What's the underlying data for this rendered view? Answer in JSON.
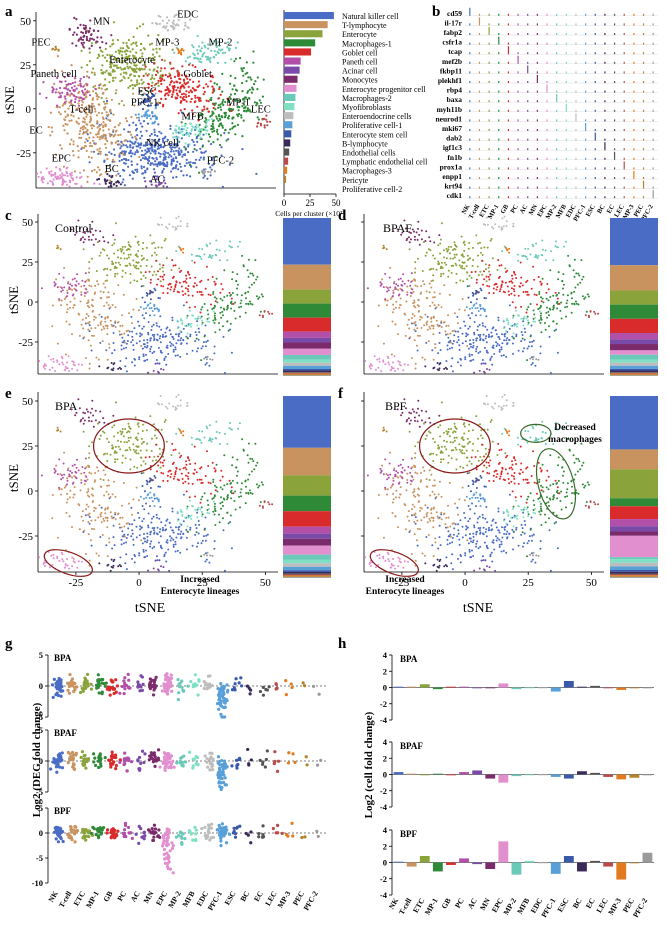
{
  "colors": {
    "NK": "#4a6cc4",
    "Tcell": "#c9935f",
    "ETC": "#8aa33a",
    "MP1": "#2f8a38",
    "GB": "#d92b2b",
    "PC": "#b24fa8",
    "AC": "#7a4aa8",
    "MN": "#7b2b6b",
    "EPC": "#e28fd0",
    "MP2": "#6ac9b8",
    "MFB": "#7fe0c4",
    "EDC": "#bdbdbd",
    "PFC1": "#5aa0d8",
    "ESC": "#3a59a8",
    "BC": "#3a2a5a",
    "EC": "#555555",
    "LEC": "#b84a4a",
    "MP3": "#e27a1e",
    "PEC": "#b3822a",
    "PFC2": "#9a9a9a"
  },
  "panels": {
    "a": {
      "letter": "a",
      "xlabel": "",
      "ylabel": "tSNE",
      "clusters": [
        "MN",
        "EDC",
        "PEC",
        "MP-3",
        "MP-2",
        "Enterocyte",
        "Goblet",
        "Paneth cell",
        "ESC",
        "PFC-1",
        "MP-1",
        "T-cell",
        "MFB",
        "LEC",
        "EC",
        "NK cell",
        "PFC-2",
        "EPC",
        "BC",
        "AC"
      ]
    },
    "b": {
      "letter": "b",
      "genes": [
        "cd59",
        "il-17r",
        "fabp2",
        "csfr1a",
        "tcap",
        "mef2b",
        "fkbp11",
        "plekhf1",
        "rbp4",
        "baxa",
        "myh11b",
        "neurod1",
        "mki67",
        "dab2",
        "igf1c3",
        "fn1b",
        "prox1a",
        "enpp1",
        "krt94",
        "cdk1"
      ],
      "cell_types": [
        "NK",
        "T-cell",
        "ETC",
        "MP-1",
        "GB",
        "PC",
        "AC",
        "MN",
        "EPC",
        "MP-2",
        "MFB",
        "EDC",
        "PFC-1",
        "ESC",
        "BC",
        "EC",
        "LEC",
        "MP-3",
        "PEC",
        "PFC-2"
      ]
    },
    "c": {
      "letter": "c",
      "label": "Control",
      "ylabel": "tSNE"
    },
    "d": {
      "letter": "d",
      "label": "BPAF"
    },
    "e": {
      "letter": "e",
      "label": "BPA",
      "ylabel": "tSNE",
      "xlabel": "tSNE",
      "annotation": "Increased Enterocyte lineages",
      "annotation_lines": [
        "Increased",
        "Enterocyte lineages"
      ]
    },
    "f": {
      "letter": "f",
      "label": "BPF",
      "xlabel": "tSNE",
      "annotation_top": [
        "Decreased",
        "macrophages"
      ],
      "annotation_bottom": [
        "Increased",
        "Enterocyte lineages"
      ]
    },
    "g": {
      "letter": "g",
      "ylabel": "Log2 (DEG fold change)",
      "rows": [
        "BPA",
        "BPAF",
        "BPF"
      ]
    },
    "h": {
      "letter": "h",
      "ylabel": "Log2 (cell fold change)",
      "rows": [
        "BPA",
        "BPAF",
        "BPF"
      ]
    }
  },
  "chart_data": [
    {
      "type": "scatter",
      "panel": "a",
      "title": "",
      "xlabel": "",
      "ylabel": "tSNE",
      "xlim": [
        -40,
        55
      ],
      "ylim": [
        -45,
        55
      ],
      "xticks": [],
      "yticks": [
        -25,
        0,
        25,
        50
      ]
    },
    {
      "type": "bar",
      "panel": "a-bar",
      "orientation": "horizontal",
      "xlabel": "Cells per cluster (×10³)",
      "xlim": [
        0,
        50
      ],
      "xticks": [
        0,
        25,
        50
      ],
      "categories": [
        "Natural killer cell",
        "T-lymphocyte",
        "Enterocyte",
        "Macrophages-1",
        "Goblet cell",
        "Paneth cell",
        "Acinar cell",
        "Monocytes",
        "Enterocyte progenitor cell",
        "Macrophages-2",
        "Myofibroblasts",
        "Enteroendocrine cells",
        "Proliferative cell-1",
        "Enterocyte stem cell",
        "B-lymphocyte",
        "Endothelial cells",
        "Lymphatic endothelial cell",
        "Macrophages-3",
        "Pericyte",
        "Proliferative cell-2"
      ],
      "values": [
        48,
        42,
        37,
        30,
        26,
        16,
        15,
        13,
        12,
        11,
        10,
        9,
        8,
        7,
        6,
        5,
        4,
        3,
        2,
        1
      ]
    },
    {
      "type": "scatter",
      "panel": "c-f",
      "xlabel": "tSNE",
      "ylabel": "tSNE",
      "xlim": [
        -40,
        55
      ],
      "ylim": [
        -45,
        55
      ],
      "xticks": [
        -25,
        0,
        25,
        50
      ],
      "yticks": [
        -25,
        0,
        25,
        50
      ]
    },
    {
      "type": "bar",
      "panel": "c-f-stack",
      "orientation": "stacked",
      "conditions": [
        "Control",
        "BPAF",
        "BPA",
        "BPF"
      ]
    },
    {
      "type": "scatter",
      "panel": "g",
      "ylabel": "Log2 (DEG fold change)",
      "categories": [
        "NK",
        "T-cell",
        "ETC",
        "MP-1",
        "GB",
        "PC",
        "AC",
        "MN",
        "EPC",
        "MP-2",
        "MFB",
        "EDC",
        "PFC-1",
        "ESC",
        "BC",
        "EC",
        "LEC",
        "MP-3",
        "PEC",
        "PFC-2"
      ],
      "series": [
        {
          "name": "BPA",
          "ylim": [
            -5,
            5
          ],
          "yticks": [
            -5,
            0,
            5
          ]
        },
        {
          "name": "BPAF",
          "ylim": [
            -5,
            5
          ],
          "yticks": [
            -5,
            0,
            5
          ]
        },
        {
          "name": "BPF",
          "ylim": [
            -10,
            5
          ],
          "yticks": [
            -10,
            -5,
            0,
            5
          ]
        }
      ]
    },
    {
      "type": "bar",
      "panel": "h",
      "ylabel": "Log2 (cell fold change)",
      "categories": [
        "NK",
        "T-cell",
        "ETC",
        "MP-1",
        "GB",
        "PC",
        "AC",
        "MN",
        "EPC",
        "MP-2",
        "MFB",
        "EDC",
        "PFC-1",
        "ESC",
        "BC",
        "EC",
        "LEC",
        "MP-3",
        "PEC",
        "PFC-2"
      ],
      "ylim": [
        -4,
        4
      ],
      "yticks": [
        -4,
        -2,
        0,
        2,
        4
      ],
      "series": [
        {
          "name": "BPA",
          "values": [
            0.1,
            0.1,
            0.4,
            -0.2,
            0.1,
            0.1,
            -0.1,
            -0.1,
            0.5,
            -0.2,
            0.0,
            0.0,
            -0.5,
            0.8,
            0.1,
            0.2,
            -0.1,
            -0.3,
            0.0,
            0.0
          ]
        },
        {
          "name": "BPAF",
          "values": [
            0.3,
            0.1,
            0.0,
            0.1,
            -0.1,
            0.3,
            0.5,
            -0.5,
            -1.0,
            -0.2,
            0.0,
            0.0,
            -0.3,
            -0.5,
            0.4,
            0.2,
            -0.3,
            -0.6,
            -0.4,
            -0.1
          ]
        },
        {
          "name": "BPF",
          "values": [
            0.1,
            -0.5,
            0.8,
            -1.1,
            -0.3,
            0.5,
            -0.2,
            -0.8,
            2.6,
            -1.5,
            0.2,
            0.0,
            -1.4,
            0.8,
            -1.1,
            0.2,
            -0.5,
            -2.1,
            0.0,
            1.2
          ]
        }
      ]
    }
  ]
}
